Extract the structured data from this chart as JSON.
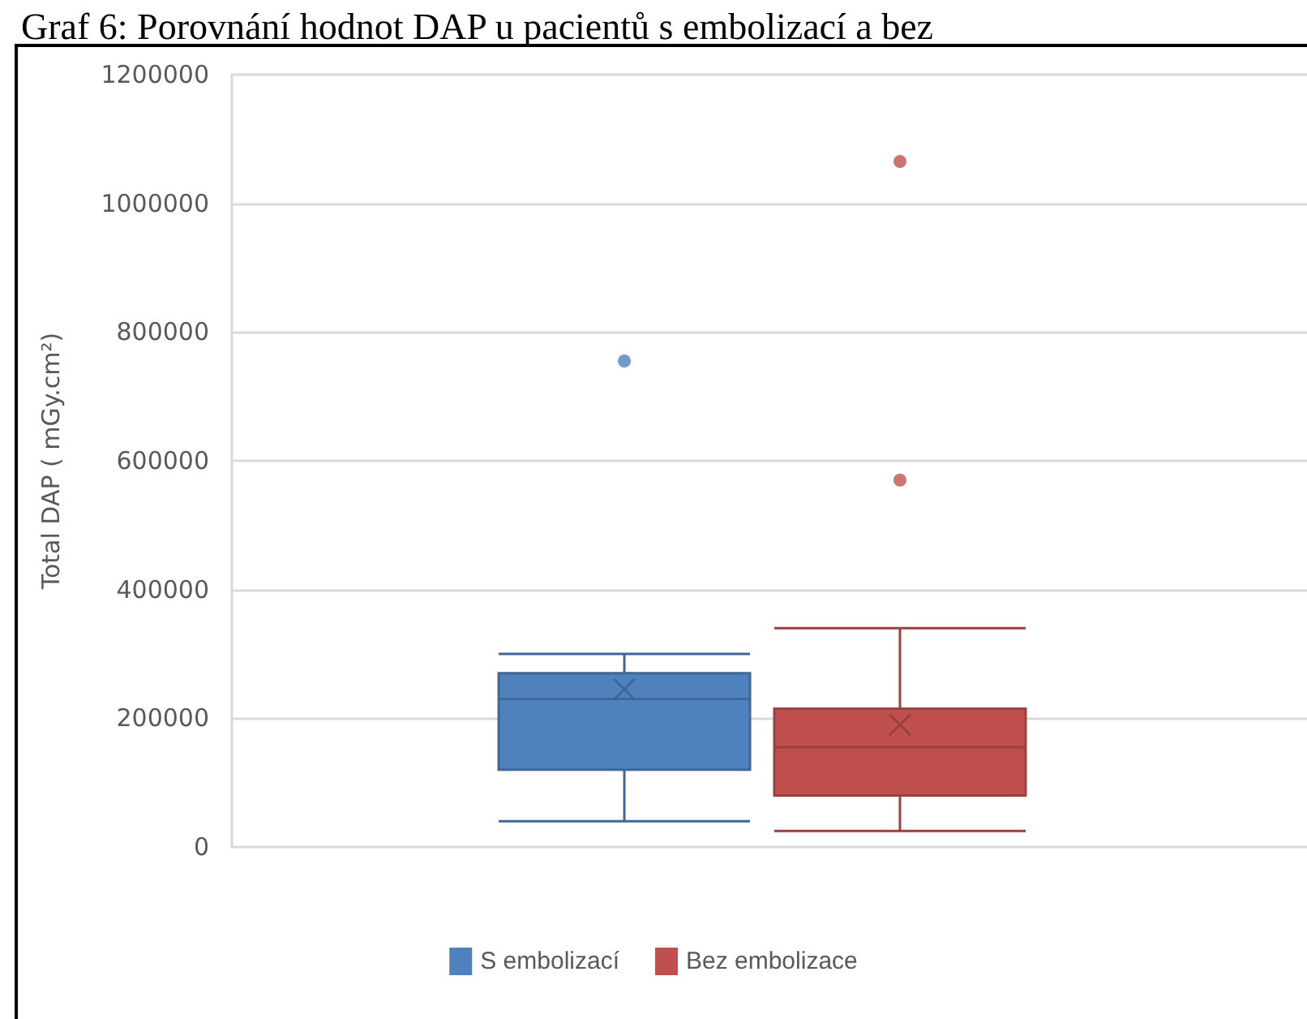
{
  "chart_data": {
    "type": "box",
    "title": "Graf 6: Porovnání hodnot DAP u pacientů s embolizací a bez",
    "ylabel": "Total DAP ( mGy.cm²)",
    "categories": [
      null
    ],
    "series": [
      {
        "name": "S embolizací",
        "color": "#4f81bd",
        "boxes": [
          {
            "low": 40000,
            "q1": 120000,
            "median": 230000,
            "q3": 270000,
            "high": 300000,
            "mean": 245000,
            "outliers": [
              755000
            ]
          }
        ]
      },
      {
        "name": "Bez embolizace",
        "color": "#c0504d",
        "boxes": [
          {
            "low": 25000,
            "q1": 80000,
            "median": 155000,
            "q3": 215000,
            "high": 340000,
            "mean": 190000,
            "outliers": [
              570000,
              1065000
            ]
          }
        ]
      }
    ],
    "ylim": [
      0,
      1200000
    ],
    "yticks": [
      0,
      200000,
      400000,
      600000,
      800000,
      1000000,
      1200000
    ],
    "grid": "y",
    "legend": "bottom"
  }
}
